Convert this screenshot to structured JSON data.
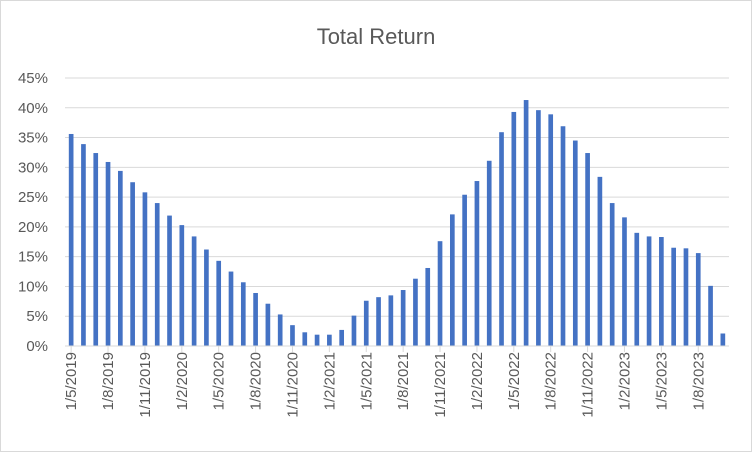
{
  "chart_data": {
    "type": "bar",
    "title": "Total Return",
    "xlabel": "",
    "ylabel": "",
    "ylim": [
      0,
      0.45
    ],
    "grid": true,
    "legend": "none",
    "colors": {
      "bar": "#4472C4",
      "grid": "#d9d9d9",
      "text": "#595959"
    },
    "y_ticks": [
      {
        "value": 0.45,
        "label": "45%"
      },
      {
        "value": 0.4,
        "label": "40%"
      },
      {
        "value": 0.35,
        "label": "35%"
      },
      {
        "value": 0.3,
        "label": "30%"
      },
      {
        "value": 0.25,
        "label": "25%"
      },
      {
        "value": 0.2,
        "label": "20%"
      },
      {
        "value": 0.15,
        "label": "15%"
      },
      {
        "value": 0.1,
        "label": "10%"
      },
      {
        "value": 0.05,
        "label": "5%"
      },
      {
        "value": 0.0,
        "label": "0%"
      }
    ],
    "x_ticks": [
      {
        "index": 0,
        "label": "1/5/2019"
      },
      {
        "index": 3,
        "label": "1/8/2019"
      },
      {
        "index": 6,
        "label": "1/11/2019"
      },
      {
        "index": 9,
        "label": "1/2/2020"
      },
      {
        "index": 12,
        "label": "1/5/2020"
      },
      {
        "index": 15,
        "label": "1/8/2020"
      },
      {
        "index": 18,
        "label": "1/11/2020"
      },
      {
        "index": 21,
        "label": "1/2/2021"
      },
      {
        "index": 24,
        "label": "1/5/2021"
      },
      {
        "index": 27,
        "label": "1/8/2021"
      },
      {
        "index": 30,
        "label": "1/11/2021"
      },
      {
        "index": 33,
        "label": "1/2/2022"
      },
      {
        "index": 36,
        "label": "1/5/2022"
      },
      {
        "index": 39,
        "label": "1/8/2022"
      },
      {
        "index": 42,
        "label": "1/11/2022"
      },
      {
        "index": 45,
        "label": "1/2/2023"
      },
      {
        "index": 48,
        "label": "1/5/2023"
      },
      {
        "index": 51,
        "label": "1/8/2023"
      }
    ],
    "values": [
      0.356,
      0.339,
      0.324,
      0.309,
      0.294,
      0.275,
      0.258,
      0.24,
      0.219,
      0.203,
      0.184,
      0.162,
      0.143,
      0.125,
      0.107,
      0.089,
      0.071,
      0.053,
      0.035,
      0.023,
      0.019,
      0.019,
      0.027,
      0.051,
      0.076,
      0.082,
      0.085,
      0.094,
      0.113,
      0.131,
      0.176,
      0.221,
      0.254,
      0.277,
      0.311,
      0.359,
      0.393,
      0.413,
      0.396,
      0.389,
      0.369,
      0.345,
      0.324,
      0.284,
      0.24,
      0.216,
      0.19,
      0.184,
      0.183,
      0.165,
      0.164,
      0.156,
      0.101,
      0.021
    ]
  }
}
